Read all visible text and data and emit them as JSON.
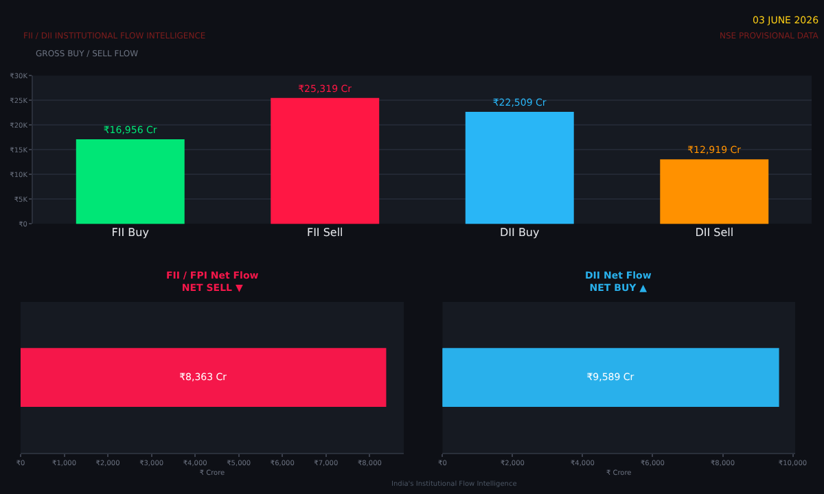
{
  "chart_data": [
    {
      "type": "bar",
      "title": "GROSS BUY / SELL FLOW",
      "categories": [
        "FII Buy",
        "FII Sell",
        "DII Buy",
        "DII Sell"
      ],
      "values": [
        16956,
        25319,
        22509,
        12919
      ],
      "colors": [
        "#00e676",
        "#ff1744",
        "#29b6f6",
        "#ff9100"
      ],
      "value_labels": [
        "₹16,956 Cr",
        "₹25,319 Cr",
        "₹22,509 Cr",
        "₹12,919 Cr"
      ],
      "ylim": [
        0,
        30000
      ],
      "yticks": [
        {
          "value": 0,
          "label": "₹0"
        },
        {
          "value": 5000,
          "label": "₹5K"
        },
        {
          "value": 10000,
          "label": "₹10K"
        },
        {
          "value": 15000,
          "label": "₹15K"
        },
        {
          "value": 20000,
          "label": "₹20K"
        },
        {
          "value": 25000,
          "label": "₹25K"
        },
        {
          "value": 30000,
          "label": "₹30K"
        }
      ],
      "grid": "y",
      "annotations": [
        "FII / DII INSTITUTIONAL FLOW INTELLIGENCE",
        "03 JUNE 2026",
        "NSE PROVISIONAL DATA",
        "India's Institutional Flow Intelligence"
      ]
    },
    {
      "type": "bar",
      "orientation": "horizontal",
      "title": "FII / FPI Net Flow",
      "subtitle": "NET SELL ▼",
      "categories": [
        null
      ],
      "values": [
        8363
      ],
      "colors": [
        "#f5174a"
      ],
      "value_labels": [
        "₹8,363 Cr"
      ],
      "xlabel": "₹ Crore",
      "xlim": [
        0,
        8781
      ],
      "xticks": [
        {
          "value": 0,
          "label": "₹0"
        },
        {
          "value": 1000,
          "label": "₹1,000"
        },
        {
          "value": 2000,
          "label": "₹2,000"
        },
        {
          "value": 3000,
          "label": "₹3,000"
        },
        {
          "value": 4000,
          "label": "₹4,000"
        },
        {
          "value": 5000,
          "label": "₹5,000"
        },
        {
          "value": 6000,
          "label": "₹6,000"
        },
        {
          "value": 7000,
          "label": "₹7,000"
        },
        {
          "value": 8000,
          "label": "₹8,000"
        }
      ]
    },
    {
      "type": "bar",
      "orientation": "horizontal",
      "title": "DII Net Flow",
      "subtitle": "NET BUY ▲",
      "categories": [
        null
      ],
      "values": [
        9589
      ],
      "colors": [
        "#29b0eb"
      ],
      "value_labels": [
        "₹9,589 Cr"
      ],
      "xlabel": "₹ Crore",
      "xlim": [
        0,
        10068
      ],
      "xticks": [
        {
          "value": 0,
          "label": "₹0"
        },
        {
          "value": 2000,
          "label": "₹2,000"
        },
        {
          "value": 4000,
          "label": "₹4,000"
        },
        {
          "value": 6000,
          "label": "₹6,000"
        },
        {
          "value": 8000,
          "label": "₹8,000"
        },
        {
          "value": 10000,
          "label": "₹10,000"
        }
      ]
    }
  ]
}
